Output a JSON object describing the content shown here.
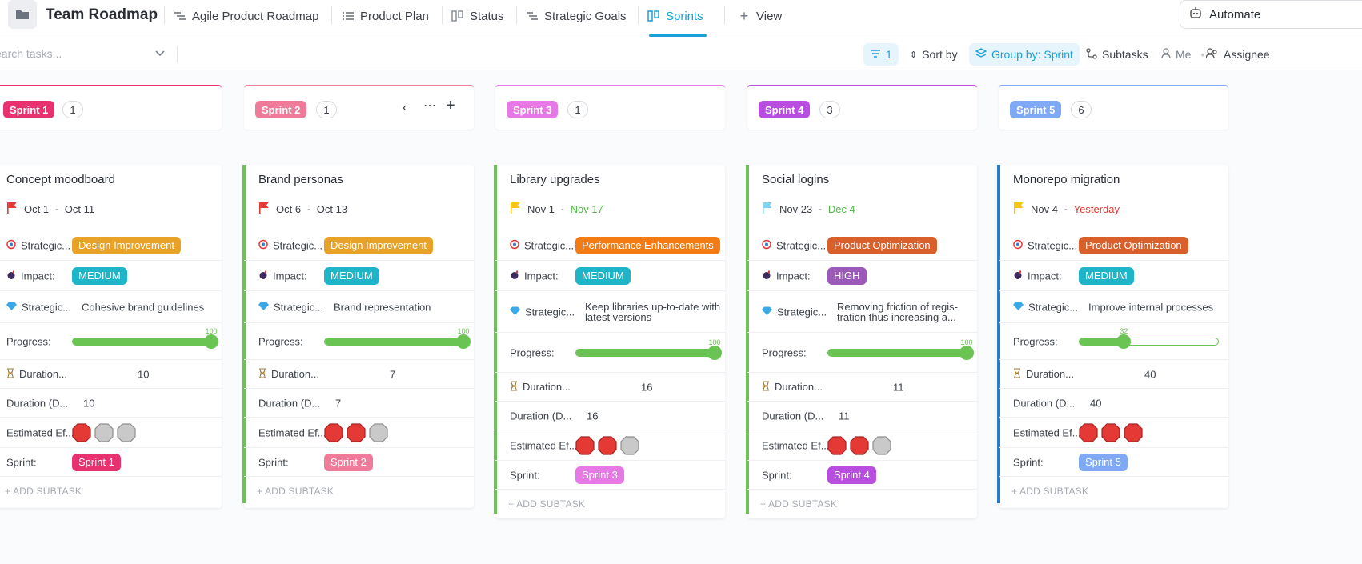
{
  "header": {
    "title": "Team Roadmap",
    "tabs": [
      {
        "label": "Agile Product Roadmap",
        "icon": "gantt-icon"
      },
      {
        "label": "Product Plan",
        "icon": "list-icon"
      },
      {
        "label": "Status",
        "icon": "board-icon"
      },
      {
        "label": "Strategic Goals",
        "icon": "gantt-icon"
      },
      {
        "label": "Sprints",
        "icon": "board-icon",
        "active": true
      },
      {
        "label": "View",
        "icon": "plus-icon"
      }
    ],
    "automate_label": "Automate"
  },
  "toolbar": {
    "search_placeholder": "earch tasks...",
    "filter_count": "1",
    "sort_label": "Sort by",
    "group_label": "Group by: Sprint",
    "subtasks_label": "Subtasks",
    "me_label": "Me",
    "assignee_label": "Assignee"
  },
  "field_labels": {
    "strategic": "Strategic...",
    "impact": "Impact:",
    "strategic2": "Strategic...",
    "progress": "Progress:",
    "duration1": "Duration...",
    "duration2": "Duration (D...",
    "effort": "Estimated Ef...",
    "sprint": "Sprint:",
    "add_subtask": "+ ADD SUBTASK"
  },
  "columns": [
    {
      "name": "Sprint 1",
      "color": "#e8316f",
      "count": "1",
      "card": {
        "title": "Concept moodboard",
        "flag_color": "#e53935",
        "start": "Oct 1",
        "end": "Oct 11",
        "end_color": "#3b4048",
        "strategic_tag": "Design Improvement",
        "strategic_color": "#e7a227",
        "impact": "MEDIUM",
        "impact_color": "#1fb5c9",
        "goal": "Cohesive brand guidelines",
        "progress": 100,
        "duration_a": "10",
        "duration_b": "10",
        "effort": 1,
        "sprint": "Sprint 1",
        "sprint_color": "#e8316f"
      }
    },
    {
      "name": "Sprint 2",
      "color": "#ef7a9a",
      "count": "1",
      "card": {
        "title": "Brand personas",
        "flag_color": "#e53935",
        "start": "Oct 6",
        "end": "Oct 13",
        "end_color": "#3b4048",
        "strategic_tag": "Design Improvement",
        "strategic_color": "#e7a227",
        "impact": "MEDIUM",
        "impact_color": "#1fb5c9",
        "goal": "Brand representation",
        "progress": 100,
        "duration_a": "7",
        "duration_b": "7",
        "effort": 2,
        "sprint": "Sprint 2",
        "sprint_color": "#ef7a9a"
      }
    },
    {
      "name": "Sprint 3",
      "color": "#e779e6",
      "count": "1",
      "card": {
        "title": "Library upgrades",
        "flag_color": "#f5c518",
        "start": "Nov 1",
        "end": "Nov 17",
        "end_color": "#52b947",
        "strategic_tag": "Performance Enhancements",
        "strategic_color": "#f47b13",
        "impact": "MEDIUM",
        "impact_color": "#1fb5c9",
        "goal": "Keep libraries up-to-date with latest versions",
        "progress": 100,
        "duration_a": "16",
        "duration_b": "16",
        "effort": 2,
        "sprint": "Sprint 3",
        "sprint_color": "#e779e6"
      }
    },
    {
      "name": "Sprint 4",
      "color": "#b84ee0",
      "count": "3",
      "card": {
        "title": "Social logins",
        "flag_color": "#7fd3f0",
        "start": "Nov 23",
        "end": "Dec 4",
        "end_color": "#52b947",
        "strategic_tag": "Product Optimization",
        "strategic_color": "#d95f2b",
        "impact": "HIGH",
        "impact_color": "#9c5ab8",
        "goal": "Removing friction of regis- tration thus increasing a...",
        "progress": 100,
        "duration_a": "11",
        "duration_b": "11",
        "effort": 2,
        "sprint": "Sprint 4",
        "sprint_color": "#b84ee0"
      }
    },
    {
      "name": "Sprint 5",
      "color": "#7fa8f5",
      "count": "6",
      "card": {
        "title": "Monorepo migration",
        "flag_color": "#f5c518",
        "start": "Nov 4",
        "end": "Yesterday",
        "end_color": "#e53935",
        "strategic_tag": "Product Optimization",
        "strategic_color": "#d95f2b",
        "impact": "MEDIUM",
        "impact_color": "#1fb5c9",
        "goal": "Improve internal processes",
        "progress": 32,
        "duration_a": "40",
        "duration_b": "40",
        "effort": 3,
        "sprint": "Sprint 5",
        "sprint_color": "#7fa8f5"
      }
    }
  ]
}
